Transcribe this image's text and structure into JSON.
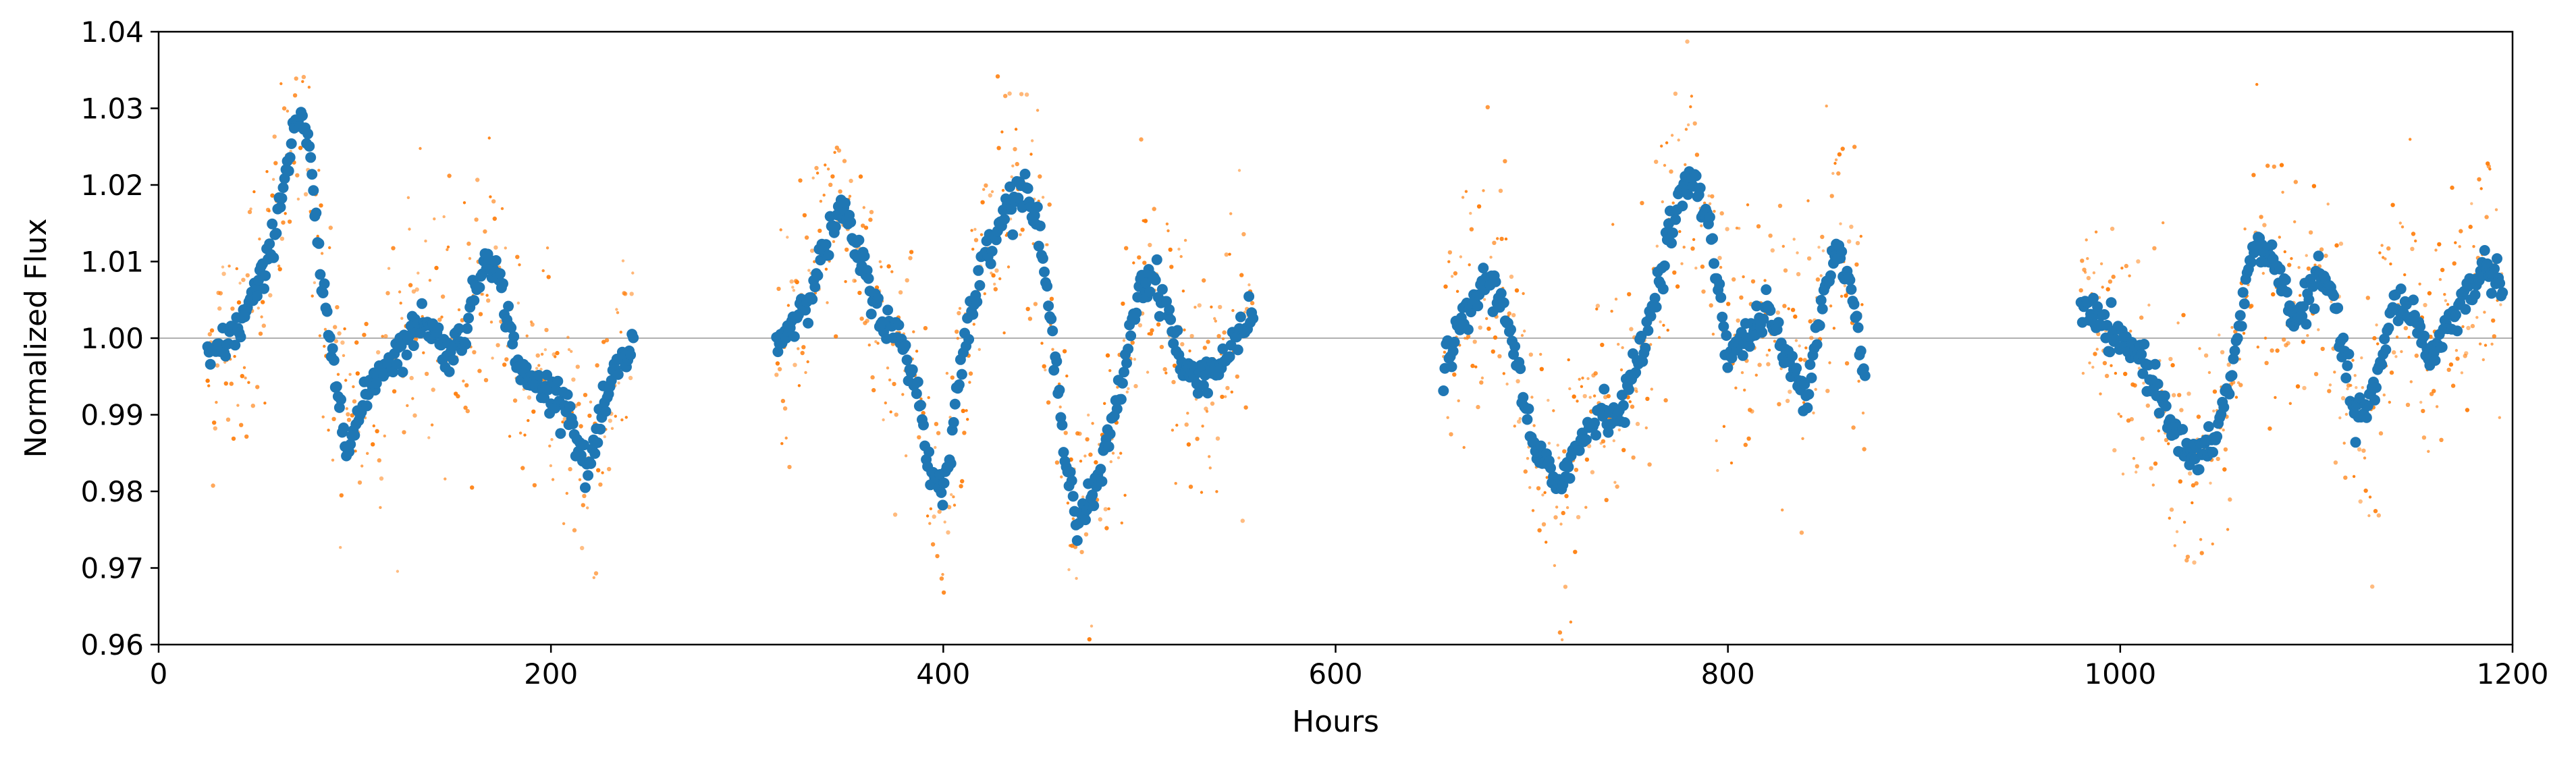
{
  "chart_data": {
    "type": "scatter",
    "title": "",
    "xlabel": "Hours",
    "ylabel": "Normalized Flux",
    "xlim": [
      0,
      1200
    ],
    "ylim": [
      0.96,
      1.04
    ],
    "x_ticks": [
      0,
      200,
      400,
      600,
      800,
      1000,
      1200
    ],
    "x_tick_labels": [
      "0",
      "200",
      "400",
      "600",
      "800",
      "1000",
      "1200"
    ],
    "y_ticks": [
      0.96,
      0.97,
      0.98,
      0.99,
      1.0,
      1.01,
      1.02,
      1.03,
      1.04
    ],
    "y_tick_labels": [
      "0.96",
      "0.97",
      "0.98",
      "0.99",
      "1.00",
      "1.01",
      "1.02",
      "1.03",
      "1.04"
    ],
    "reference_line": 1.0,
    "grid": false,
    "legend": "none",
    "colors": {
      "raw": "#ff7f0e",
      "smoothed": "#1f77b4",
      "reference": "#b0b0b0"
    },
    "segments": [
      {
        "x_range": [
          25,
          242
        ],
        "curve": [
          [
            25,
            0.997
          ],
          [
            40,
            1.001
          ],
          [
            55,
            1.009
          ],
          [
            65,
            1.022
          ],
          [
            70,
            1.029
          ],
          [
            76,
            1.026
          ],
          [
            84,
            1.005
          ],
          [
            90,
            0.995
          ],
          [
            97,
            0.986
          ],
          [
            110,
            0.995
          ],
          [
            128,
            1.0
          ],
          [
            135,
            1.003
          ],
          [
            147,
            0.998
          ],
          [
            155,
            1.0
          ],
          [
            168,
            1.012
          ],
          [
            175,
            1.006
          ],
          [
            185,
            0.995
          ],
          [
            200,
            0.993
          ],
          [
            208,
            0.992
          ],
          [
            218,
            0.982
          ],
          [
            232,
            0.995
          ],
          [
            242,
            0.999
          ]
        ]
      },
      {
        "x_range": [
          315,
          558
        ],
        "curve": [
          [
            315,
            0.999
          ],
          [
            330,
            1.005
          ],
          [
            348,
            1.017
          ],
          [
            358,
            1.01
          ],
          [
            368,
            1.003
          ],
          [
            380,
            0.999
          ],
          [
            387,
            0.993
          ],
          [
            393,
            0.983
          ],
          [
            400,
            0.98
          ],
          [
            410,
            0.998
          ],
          [
            422,
            1.012
          ],
          [
            432,
            1.017
          ],
          [
            442,
            1.02
          ],
          [
            450,
            1.012
          ],
          [
            460,
            0.99
          ],
          [
            468,
            0.976
          ],
          [
            478,
            0.98
          ],
          [
            490,
            0.993
          ],
          [
            500,
            1.007
          ],
          [
            508,
            1.008
          ],
          [
            515,
            1.003
          ],
          [
            523,
            0.995
          ],
          [
            540,
            0.996
          ],
          [
            558,
            1.003
          ]
        ]
      },
      {
        "x_range": [
          655,
          870
        ],
        "curve": [
          [
            655,
            0.996
          ],
          [
            665,
            1.002
          ],
          [
            677,
            1.008
          ],
          [
            688,
            1.003
          ],
          [
            700,
            0.986
          ],
          [
            712,
            0.981
          ],
          [
            722,
            0.985
          ],
          [
            735,
            0.991
          ],
          [
            745,
            0.99
          ],
          [
            760,
            1.002
          ],
          [
            770,
            1.014
          ],
          [
            780,
            1.021
          ],
          [
            790,
            1.016
          ],
          [
            800,
            0.998
          ],
          [
            810,
            1.0
          ],
          [
            820,
            1.004
          ],
          [
            830,
            0.997
          ],
          [
            840,
            0.993
          ],
          [
            848,
            1.005
          ],
          [
            855,
            1.012
          ],
          [
            863,
            1.006
          ],
          [
            870,
            0.994
          ]
        ]
      },
      {
        "x_range": [
          980,
          1195
        ],
        "curve": [
          [
            980,
            1.004
          ],
          [
            990,
            1.002
          ],
          [
            1000,
            0.999
          ],
          [
            1010,
            0.998
          ],
          [
            1025,
            0.99
          ],
          [
            1035,
            0.984
          ],
          [
            1045,
            0.985
          ],
          [
            1055,
            0.993
          ],
          [
            1065,
            1.008
          ],
          [
            1070,
            1.013
          ],
          [
            1080,
            1.009
          ],
          [
            1090,
            1.002
          ],
          [
            1100,
            1.008
          ],
          [
            1108,
            1.006
          ],
          [
            1120,
            0.989
          ],
          [
            1130,
            0.993
          ],
          [
            1140,
            1.005
          ],
          [
            1150,
            1.003
          ],
          [
            1158,
            0.997
          ],
          [
            1165,
            1.001
          ],
          [
            1175,
            1.005
          ],
          [
            1185,
            1.009
          ],
          [
            1195,
            1.008
          ]
        ]
      }
    ],
    "raw_noise_amplitude": 0.011
  }
}
